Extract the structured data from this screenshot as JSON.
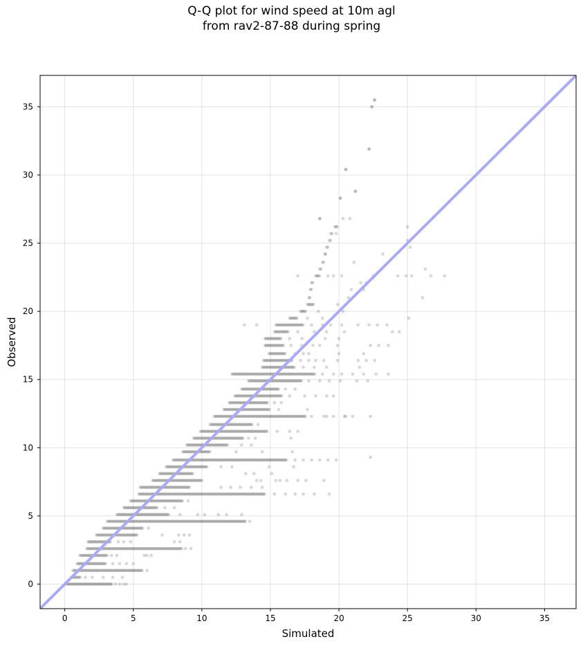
{
  "chart_data": {
    "type": "scatter",
    "title_lines": [
      "Q-Q plot for wind speed at 10m agl",
      "from rav2-87-88 during spring"
    ],
    "xlabel": "Simulated",
    "ylabel": "Observed",
    "xlim": [
      -1.8,
      37.3
    ],
    "ylim": [
      -1.8,
      37.3
    ],
    "xticks": [
      0,
      5,
      10,
      15,
      20,
      25,
      30,
      35
    ],
    "yticks": [
      0,
      5,
      10,
      15,
      20,
      25,
      30,
      35
    ],
    "grid": true,
    "reference_line": {
      "slope": 1,
      "intercept": 0,
      "color": "#aaaaf5"
    },
    "point_color": "#000000",
    "point_alpha": 0.15,
    "bands": [
      {
        "y": 0.0,
        "x_min": 0.1,
        "x_max": 3.5,
        "extra_x": [
          3.7,
          4.0,
          4.3,
          4.5
        ]
      },
      {
        "y": 0.5,
        "x_min": 0.5,
        "x_max": 1.2,
        "extra_x": [
          1.5,
          2.0,
          2.8,
          3.5,
          4.2
        ]
      },
      {
        "y": 1.0,
        "x_min": 0.6,
        "x_max": 5.7,
        "extra_x": [
          6.0
        ]
      },
      {
        "y": 1.5,
        "x_min": 0.9,
        "x_max": 3.0,
        "extra_x": [
          3.5,
          4.0,
          4.5,
          5.0
        ]
      },
      {
        "y": 2.1,
        "x_min": 1.1,
        "x_max": 3.1,
        "extra_x": [
          3.4,
          3.8,
          5.8,
          6.0,
          6.3
        ]
      },
      {
        "y": 2.6,
        "x_min": 1.6,
        "x_max": 8.6,
        "extra_x": [
          8.8,
          9.2
        ]
      },
      {
        "y": 3.1,
        "x_min": 1.7,
        "x_max": 3.4,
        "extra_x": [
          3.9,
          4.3,
          4.8,
          8.0,
          8.4
        ]
      },
      {
        "y": 3.6,
        "x_min": 2.3,
        "x_max": 5.3,
        "extra_x": [
          7.1,
          8.3,
          8.7,
          9.1
        ]
      },
      {
        "y": 4.1,
        "x_min": 2.8,
        "x_max": 5.7,
        "extra_x": [
          6.1
        ]
      },
      {
        "y": 4.6,
        "x_min": 3.1,
        "x_max": 13.2,
        "extra_x": [
          13.5
        ]
      },
      {
        "y": 5.1,
        "x_min": 3.8,
        "x_max": 7.6,
        "extra_x": [
          8.4,
          9.7,
          10.2,
          11.2,
          11.8,
          12.9
        ]
      },
      {
        "y": 5.6,
        "x_min": 4.3,
        "x_max": 6.8,
        "extra_x": [
          7.3,
          8.0
        ]
      },
      {
        "y": 6.1,
        "x_min": 4.8,
        "x_max": 8.6,
        "extra_x": [
          9.0
        ]
      },
      {
        "y": 6.6,
        "x_min": 5.4,
        "x_max": 14.6,
        "extra_x": [
          15.3,
          16.1,
          16.8,
          17.4,
          18.2,
          19.3
        ]
      },
      {
        "y": 7.1,
        "x_min": 5.5,
        "x_max": 9.1,
        "extra_x": [
          11.4,
          12.1,
          12.8,
          13.6,
          14.4
        ]
      },
      {
        "y": 7.6,
        "x_min": 6.4,
        "x_max": 10.0,
        "extra_x": [
          14.0,
          14.3,
          15.4,
          15.7,
          16.2,
          17.0,
          17.6,
          18.9
        ]
      },
      {
        "y": 8.1,
        "x_min": 6.9,
        "x_max": 9.4,
        "extra_x": [
          13.2,
          13.8,
          15.1
        ]
      },
      {
        "y": 8.6,
        "x_min": 7.4,
        "x_max": 10.4,
        "extra_x": [
          11.4,
          12.2,
          14.9,
          16.7
        ]
      },
      {
        "y": 9.1,
        "x_min": 7.9,
        "x_max": 16.2,
        "extra_x": [
          16.8,
          17.4,
          18.0,
          18.6,
          19.2,
          19.8
        ]
      },
      {
        "y": 9.7,
        "x_min": 8.6,
        "x_max": 10.6,
        "extra_x": [
          12.5,
          14.4,
          16.6
        ]
      },
      {
        "y": 10.2,
        "x_min": 8.9,
        "x_max": 11.9,
        "extra_x": [
          12.9,
          13.6
        ]
      },
      {
        "y": 10.7,
        "x_min": 9.4,
        "x_max": 13.0,
        "extra_x": [
          13.4,
          13.9,
          16.5
        ]
      },
      {
        "y": 11.2,
        "x_min": 9.9,
        "x_max": 14.8,
        "extra_x": [
          15.5,
          16.4,
          17.0
        ]
      },
      {
        "y": 11.7,
        "x_min": 10.6,
        "x_max": 13.7,
        "extra_x": [
          14.1
        ]
      },
      {
        "y": 12.3,
        "x_min": 10.9,
        "x_max": 17.6,
        "extra_x": [
          18.0,
          19.1,
          19.6,
          20.4,
          21.0
        ]
      },
      {
        "y": 12.8,
        "x_min": 11.6,
        "x_max": 15.0,
        "extra_x": [
          15.6,
          17.7
        ]
      },
      {
        "y": 13.3,
        "x_min": 12.0,
        "x_max": 14.8,
        "extra_x": [
          15.3,
          15.8
        ]
      },
      {
        "y": 13.8,
        "x_min": 12.4,
        "x_max": 15.9,
        "extra_x": [
          16.4,
          17.5,
          18.3,
          19.1,
          19.6
        ]
      },
      {
        "y": 14.3,
        "x_min": 12.9,
        "x_max": 15.6,
        "extra_x": [
          16.1,
          16.8
        ]
      },
      {
        "y": 14.9,
        "x_min": 13.4,
        "x_max": 17.3,
        "extra_x": [
          17.8,
          18.6,
          19.3,
          20.1,
          21.3,
          22.1
        ]
      },
      {
        "y": 15.4,
        "x_min": 12.2,
        "x_max": 18.3,
        "extra_x": [
          18.8,
          19.6,
          20.2,
          21.0,
          21.8,
          22.7,
          23.6
        ]
      },
      {
        "y": 15.9,
        "x_min": 14.4,
        "x_max": 16.8,
        "extra_x": [
          17.4,
          18.2,
          19.1,
          21.5
        ]
      },
      {
        "y": 16.4,
        "x_min": 14.5,
        "x_max": 16.6,
        "extra_x": [
          17.2,
          17.8,
          18.3,
          18.9,
          19.9,
          21.4,
          22.0,
          22.6
        ]
      },
      {
        "y": 16.9,
        "x_min": 14.9,
        "x_max": 16.1,
        "extra_x": [
          16.8,
          17.4,
          17.8,
          20.0,
          21.8
        ]
      },
      {
        "y": 17.5,
        "x_min": 14.6,
        "x_max": 16.0,
        "extra_x": [
          16.5,
          17.3,
          18.1,
          18.6,
          19.9,
          22.3,
          22.9,
          23.6
        ]
      },
      {
        "y": 18.0,
        "x_min": 14.6,
        "x_max": 15.8,
        "extra_x": [
          16.4,
          17.3,
          19.0,
          20.0
        ]
      },
      {
        "y": 18.5,
        "x_min": 15.3,
        "x_max": 16.3,
        "extra_x": [
          17.0,
          18.2,
          19.1,
          20.4,
          23.9,
          24.4
        ]
      },
      {
        "y": 19.0,
        "x_min": 15.4,
        "x_max": 17.4,
        "extra_x": [
          13.1,
          14.0,
          18.0,
          18.8,
          19.4,
          20.2,
          21.4,
          22.2,
          22.8,
          23.5
        ]
      },
      {
        "y": 19.5,
        "x_min": 16.4,
        "x_max": 17.0,
        "extra_x": [
          17.7,
          18.8,
          25.1
        ]
      },
      {
        "y": 20.0,
        "x_min": 17.2,
        "x_max": 17.6,
        "extra_x": [
          18.5,
          20.3
        ]
      },
      {
        "y": 20.5,
        "x_min": 17.7,
        "x_max": 18.2,
        "extra_x": [
          19.9
        ]
      },
      {
        "y": 21.0,
        "x_min": 17.8,
        "x_max": 17.9,
        "extra_x": [
          20.7,
          26.1
        ]
      },
      {
        "y": 21.6,
        "x_min": 17.9,
        "x_max": 18.0,
        "extra_x": [
          20.9,
          21.8
        ]
      },
      {
        "y": 22.1,
        "x_min": 18.0,
        "x_max": 18.1,
        "extra_x": [
          21.6,
          22.0
        ]
      },
      {
        "y": 22.6,
        "x_min": 18.3,
        "x_max": 18.6,
        "extra_x": [
          17.0,
          19.2,
          19.6,
          20.2,
          22.5,
          24.3,
          25.3,
          26.7,
          27.7
        ]
      },
      {
        "y": 23.1,
        "x_min": 18.6,
        "x_max": 18.7,
        "extra_x": [
          26.3
        ]
      },
      {
        "y": 23.6,
        "x_min": 18.8,
        "x_max": 18.9,
        "extra_x": [
          21.1
        ]
      },
      {
        "y": 24.2,
        "x_min": 19.0,
        "x_max": 19.0,
        "extra_x": [
          23.2
        ]
      },
      {
        "y": 24.7,
        "x_min": 19.1,
        "x_max": 19.2,
        "extra_x": [
          25.2
        ]
      },
      {
        "y": 25.2,
        "x_min": 19.3,
        "x_max": 19.4,
        "extra_x": [
          25.0
        ]
      },
      {
        "y": 25.7,
        "x_min": 19.4,
        "x_max": 19.5,
        "extra_x": [
          19.8
        ]
      },
      {
        "y": 26.2,
        "x_min": 19.7,
        "x_max": 19.9,
        "extra_x": [
          25.0
        ]
      },
      {
        "y": 26.8,
        "x_min": 18.6,
        "x_max": 18.6,
        "extra_x": [
          20.3,
          20.8
        ]
      },
      {
        "y": 28.3,
        "x_min": 20.1,
        "x_max": 20.1,
        "extra_x": []
      },
      {
        "y": 28.8,
        "x_min": 21.2,
        "x_max": 21.2,
        "extra_x": []
      },
      {
        "y": 30.4,
        "x_min": 20.5,
        "x_max": 20.5,
        "extra_x": []
      },
      {
        "y": 31.9,
        "x_min": 22.2,
        "x_max": 22.2,
        "extra_x": []
      },
      {
        "y": 35.0,
        "x_min": 22.4,
        "x_max": 22.4,
        "extra_x": []
      },
      {
        "y": 35.5,
        "x_min": 22.6,
        "x_max": 22.6,
        "extra_x": []
      }
    ],
    "isolated_points": [
      [
        22.3,
        12.3
      ],
      [
        22.3,
        9.3
      ],
      [
        20.5,
        12.3
      ],
      [
        18.9,
        12.3
      ],
      [
        24.9,
        22.6
      ]
    ]
  }
}
